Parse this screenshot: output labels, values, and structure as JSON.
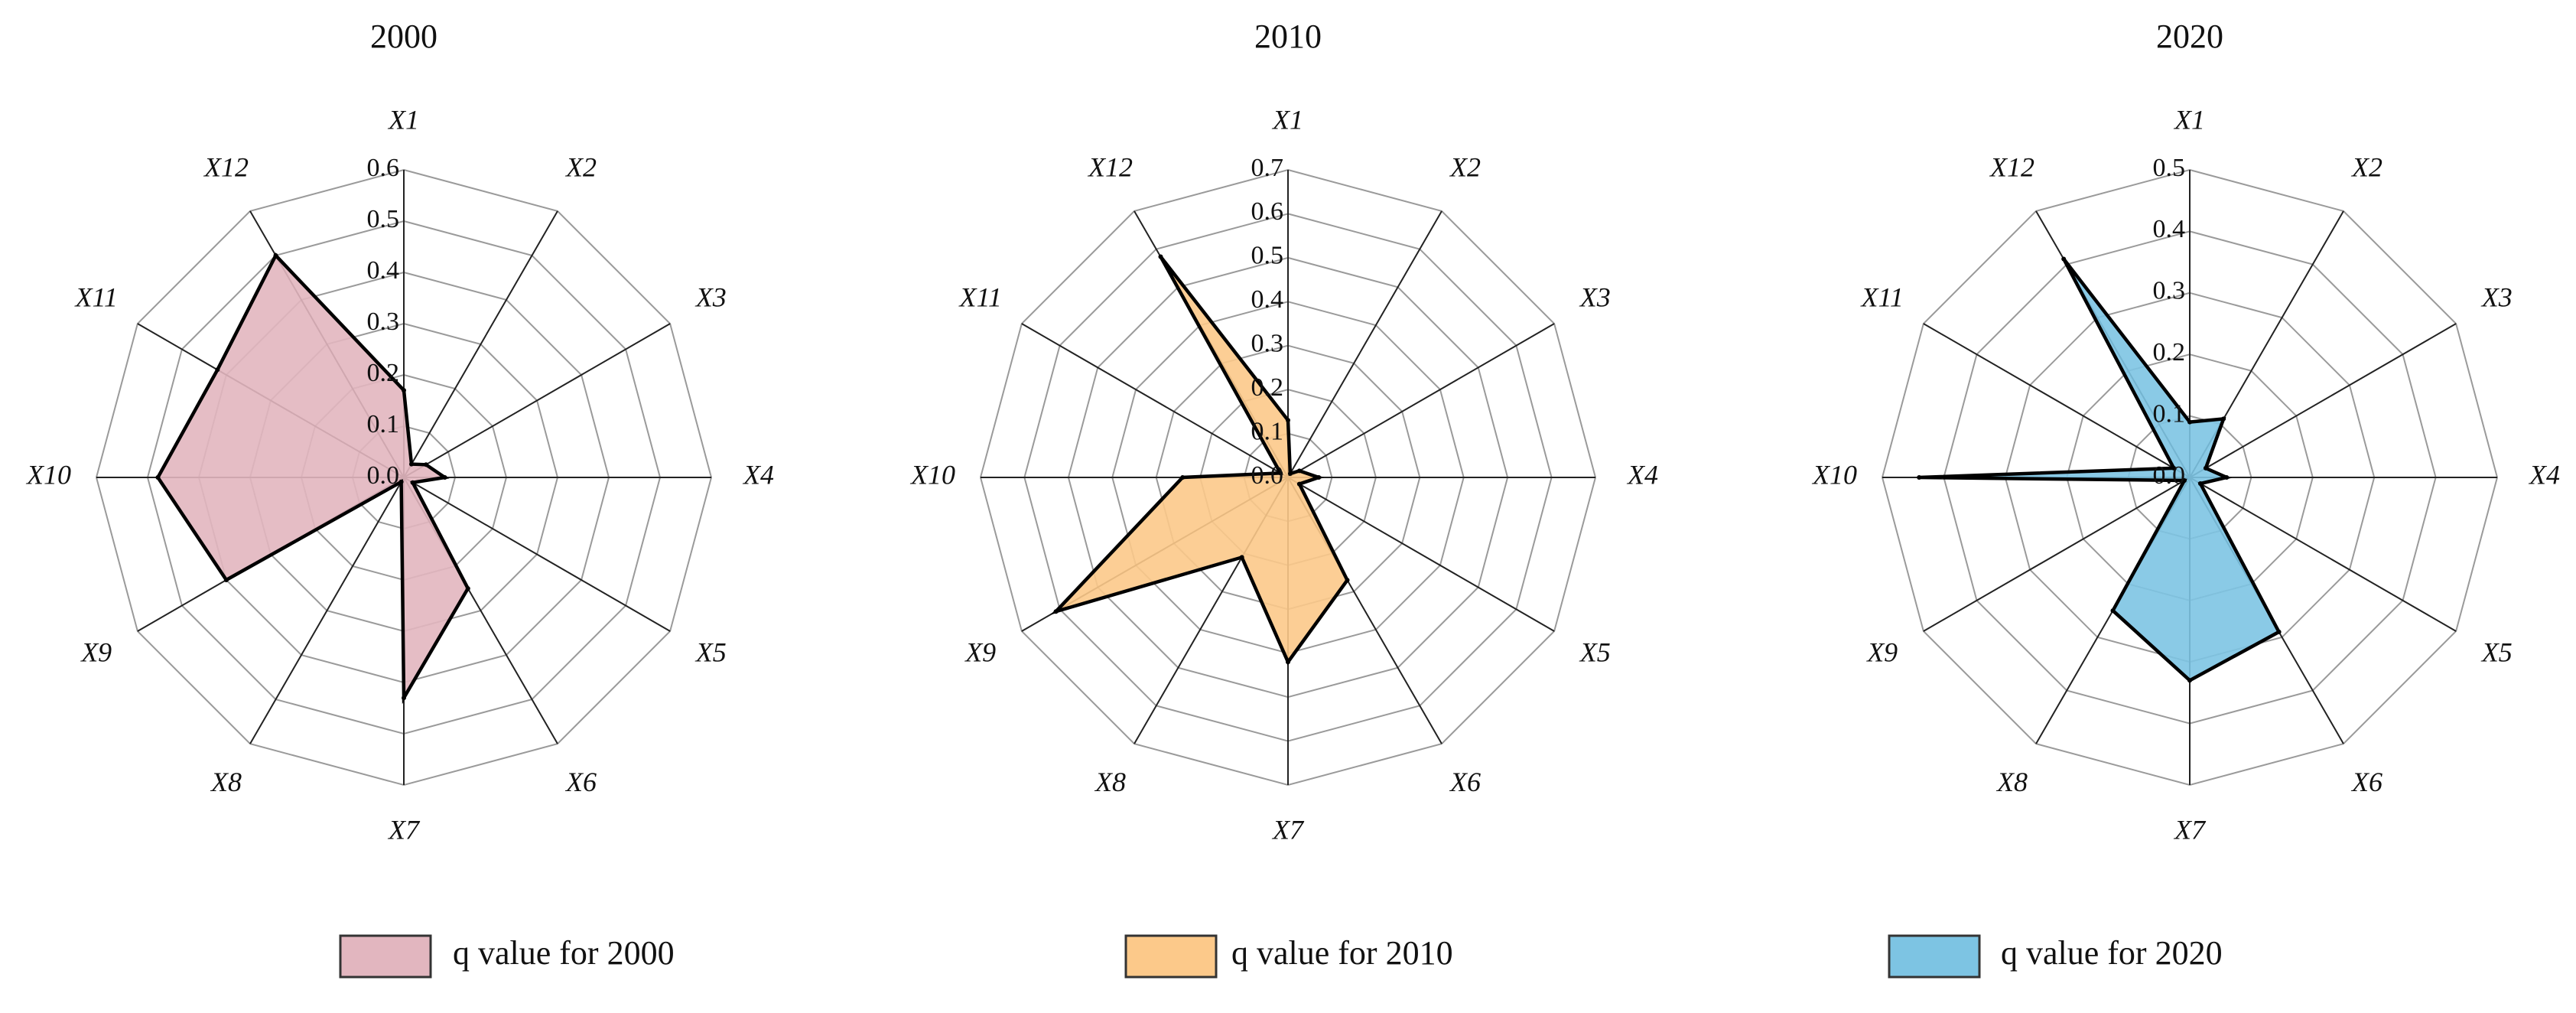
{
  "chart_data": [
    {
      "type": "radar",
      "title": "2000",
      "axes": [
        "X1",
        "X2",
        "X3",
        "X4",
        "X5",
        "X6",
        "X7",
        "X8",
        "X9",
        "X10",
        "X11",
        "X12"
      ],
      "rmax": 0.6,
      "ticks": [
        "0.0",
        "0.1",
        "0.2",
        "0.3",
        "0.4",
        "0.5",
        "0.6"
      ],
      "tick_values": [
        0,
        0.1,
        0.2,
        0.3,
        0.4,
        0.5,
        0.6
      ],
      "series": [
        {
          "name": "q value for 2000",
          "values": [
            0.17,
            0.03,
            0.05,
            0.08,
            0.02,
            0.25,
            0.43,
            0.01,
            0.4,
            0.48,
            0.42,
            0.5
          ]
        }
      ],
      "color": "#e2b6bf"
    },
    {
      "type": "radar",
      "title": "2010",
      "axes": [
        "X1",
        "X2",
        "X3",
        "X4",
        "X5",
        "X6",
        "X7",
        "X8",
        "X9",
        "X10",
        "X11",
        "X12"
      ],
      "rmax": 0.7,
      "ticks": [
        "0.0",
        "0.1",
        "0.2",
        "0.3",
        "0.4",
        "0.5",
        "0.6",
        "0.7"
      ],
      "tick_values": [
        0,
        0.1,
        0.2,
        0.3,
        0.4,
        0.5,
        0.6,
        0.7
      ],
      "series": [
        {
          "name": "q value for 2010",
          "values": [
            0.13,
            0.01,
            0.03,
            0.07,
            0.03,
            0.27,
            0.42,
            0.21,
            0.61,
            0.24,
            0.02,
            0.58
          ]
        }
      ],
      "color": "#fcc98a"
    },
    {
      "type": "radar",
      "title": "2020",
      "axes": [
        "X1",
        "X2",
        "X3",
        "X4",
        "X5",
        "X6",
        "X7",
        "X8",
        "X9",
        "X10",
        "X11",
        "X12"
      ],
      "rmax": 0.5,
      "ticks": [
        "0.0",
        "0.1",
        "0.2",
        "0.3",
        "0.4",
        "0.5"
      ],
      "tick_values": [
        0,
        0.1,
        0.2,
        0.3,
        0.4,
        0.5
      ],
      "series": [
        {
          "name": "q value for 2020",
          "values": [
            0.09,
            0.11,
            0.03,
            0.06,
            0.02,
            0.29,
            0.33,
            0.25,
            0.01,
            0.44,
            0.03,
            0.41
          ]
        }
      ],
      "color": "#7dc4e3"
    }
  ]
}
